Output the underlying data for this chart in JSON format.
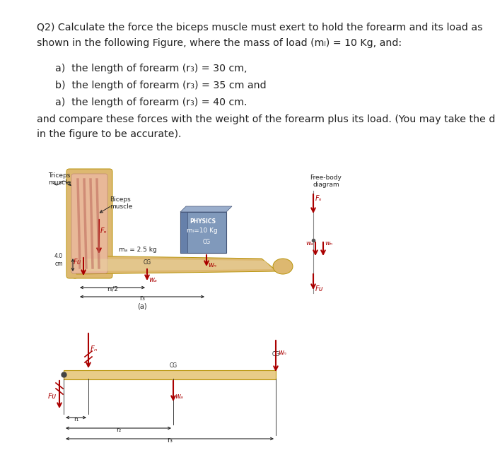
{
  "page_bg": "#ffffff",
  "title_line1": "Q2) Calculate the force the biceps muscle must exert to hold the forearm and its load as",
  "title_line2": "shown in the following Figure, where the mass of load (mₗ) = 10 Kg, and:",
  "items": [
    "a)  the length of forearm (r₃) = 30 cm,",
    "b)  the length of forearm (r₃) = 35 cm and",
    "a)  the length of forearm (r₃) = 40 cm."
  ],
  "footer_line1": "and compare these forces with the weight of the forearm plus its load. (You may take the data",
  "footer_line2": "in the figure to be accurate).",
  "arrow_color": "#aa0000",
  "forearm_skin_color": "#ddb870",
  "forearm_inner_color": "#e8c880",
  "muscle_outer_color": "#e8b898",
  "muscle_inner_color": "#d89080",
  "muscle_dark_color": "#c07060",
  "book_face_color": "#8099bb",
  "book_spine_color": "#6680aa",
  "book_top_color": "#9aaecc",
  "beam_color": "#e8cc88",
  "text_color": "#222222",
  "dim_color": "#555555",
  "label_fs": 6.5,
  "body_fs": 10.2
}
